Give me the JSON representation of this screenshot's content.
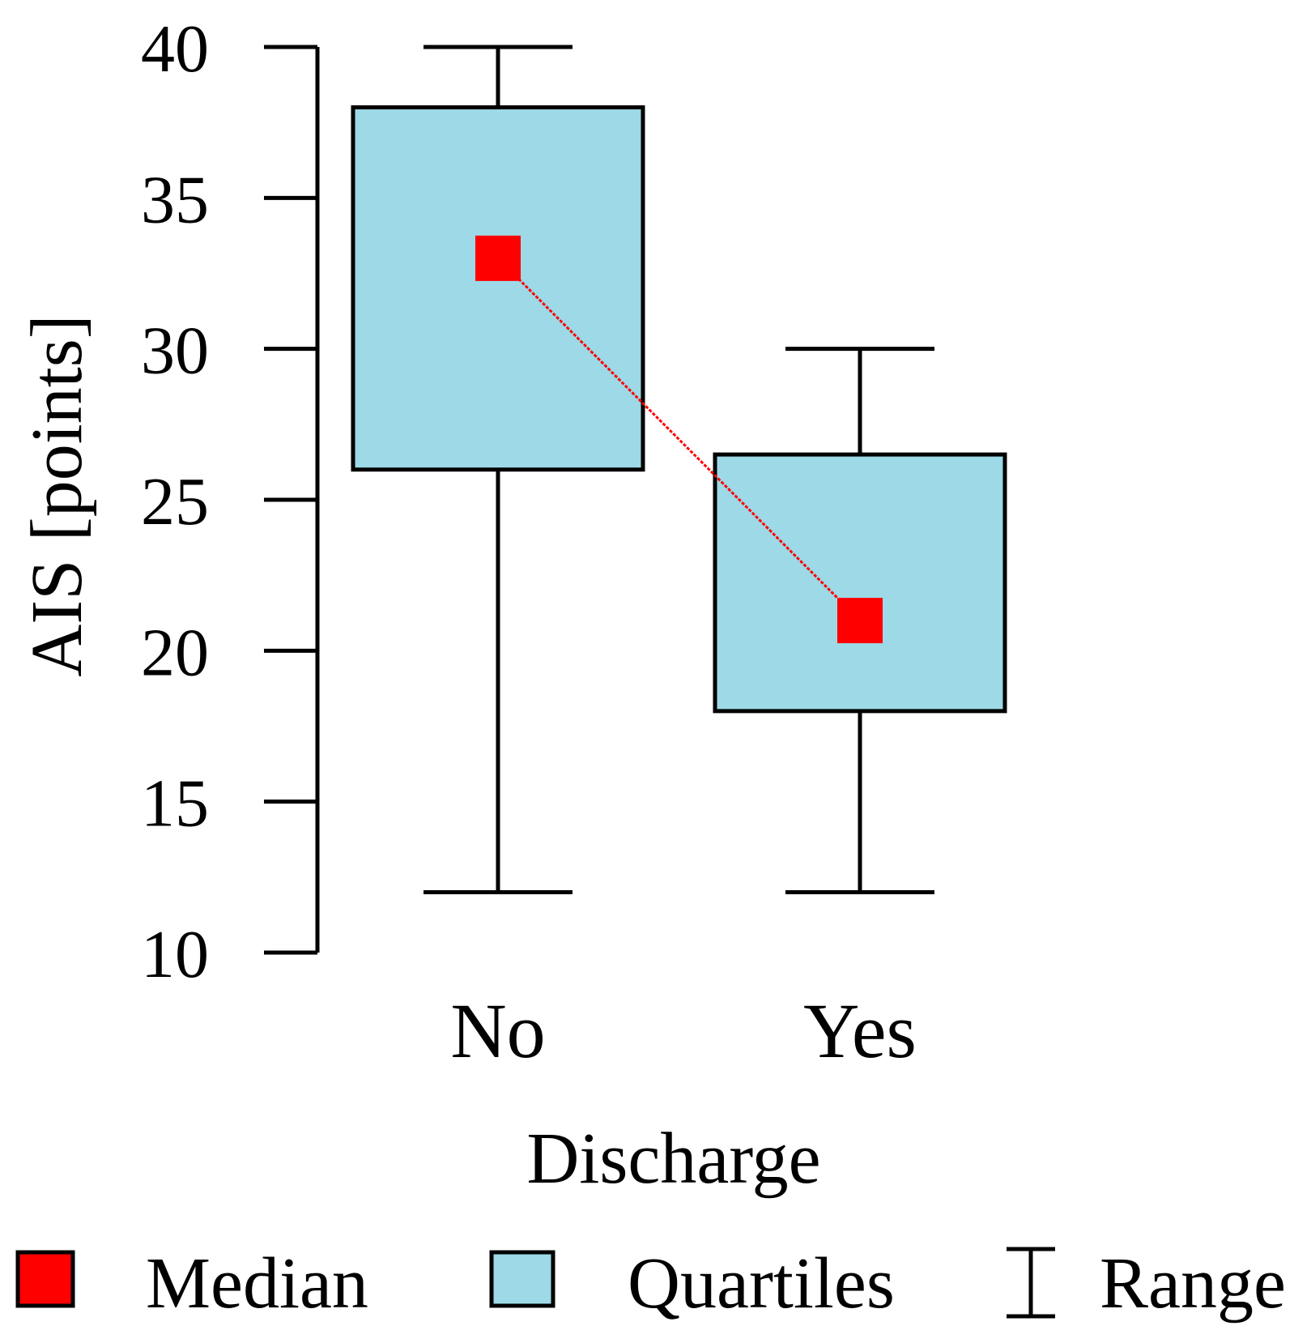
{
  "chart_data": {
    "type": "box",
    "categories": [
      "No",
      "Yes"
    ],
    "boxes": [
      {
        "category": "No",
        "min": 12,
        "q1": 26,
        "median": 33,
        "q3": 38,
        "max": 40
      },
      {
        "category": "Yes",
        "min": 12,
        "q1": 18,
        "median": 21,
        "q3": 26.5,
        "max": 30
      }
    ],
    "median_line": true,
    "xlabel": "Discharge",
    "ylabel": "AIS [points]",
    "ylim": [
      10,
      40
    ],
    "yticks": [
      10,
      15,
      20,
      25,
      30,
      35,
      40
    ],
    "grid": false,
    "legend_position": "bottom",
    "legend": [
      {
        "label": "Median",
        "marker": "square-red"
      },
      {
        "label": "Quartiles",
        "marker": "box-lightblue"
      },
      {
        "label": "Range",
        "marker": "whisker"
      }
    ],
    "colors": {
      "median": "#ff0000",
      "box_fill": "#9dd9e6",
      "stroke": "#000000",
      "median_line": "#ff0000"
    }
  }
}
